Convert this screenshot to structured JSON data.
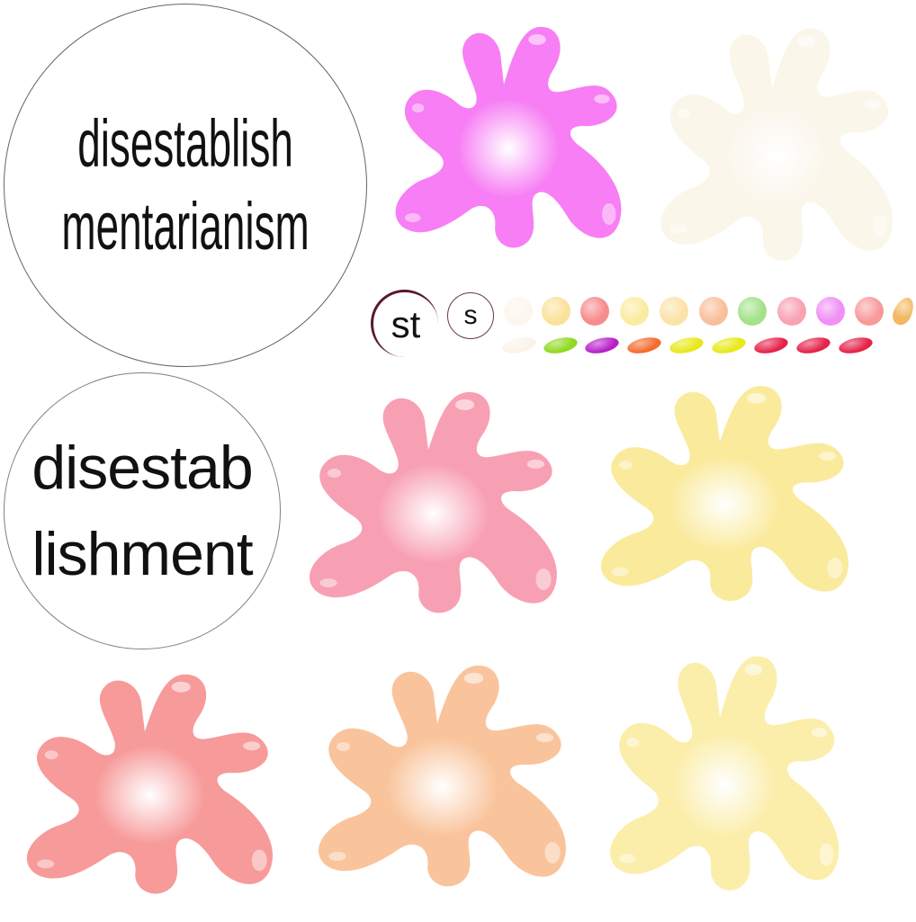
{
  "letter_bubbles": {
    "large": {
      "lines": [
        "disestablish",
        "mentarianism"
      ]
    },
    "medium": {
      "lines": [
        "disestab",
        "lishment"
      ]
    }
  },
  "small_bubbles": {
    "st": "st",
    "s": "s"
  },
  "splat_tiles": [
    {
      "name": "splat-magenta",
      "color": "#f77ef4"
    },
    {
      "name": "splat-faded-cream",
      "color": "#fbf6ea"
    },
    {
      "name": "splat-pink",
      "color": "#f8a0b3"
    },
    {
      "name": "splat-pale-yellow",
      "color": "#faea9c"
    },
    {
      "name": "splat-coral",
      "color": "#f79a9a"
    },
    {
      "name": "splat-peach",
      "color": "#f9c49c"
    },
    {
      "name": "splat-light-yellow",
      "color": "#fbeeaa"
    }
  ],
  "orb_row": [
    "#fdf6ec",
    "#fbe29a",
    "#f78c8c",
    "#fbeba0",
    "#fbe2a8",
    "#f9bf9c",
    "#a4e28a",
    "#f9a2b2",
    "#f08ff5",
    "#f79a9a",
    "#f2b862"
  ],
  "bean_row": [
    "#fbf3e8",
    "#8fd91e",
    "#b81fc7",
    "#f46b2e",
    "#e8e81a",
    "#e8e81a",
    "#e5234a",
    "#e5234a",
    "#e5234a"
  ]
}
